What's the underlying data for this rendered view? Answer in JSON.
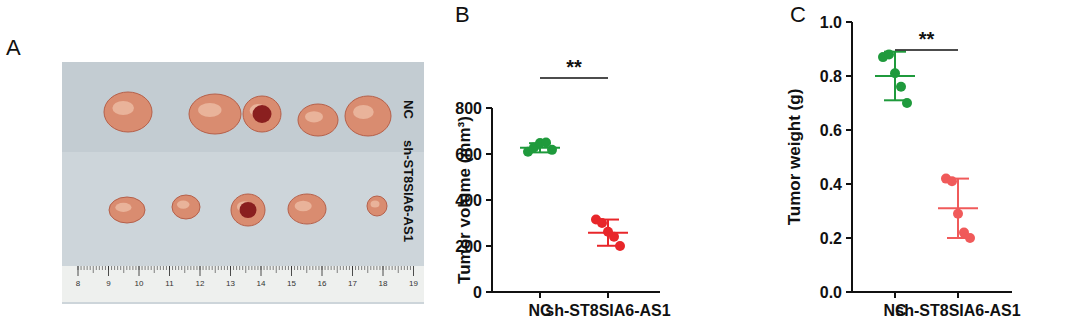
{
  "panel_labels": [
    "A",
    "B",
    "C"
  ],
  "photo": {
    "row_labels": [
      "NC",
      "sh-ST8SIA6-AS1"
    ],
    "ruler_ticks": [
      8,
      9,
      10,
      11,
      12,
      13,
      14,
      15,
      16,
      17,
      18,
      19
    ]
  },
  "chart_data": [
    {
      "type": "dot",
      "y_label": "Tumor volume (mm³)",
      "categories": [
        "NC",
        "sh-ST8SIA6-AS1"
      ],
      "values": [
        [
          610,
          628,
          648,
          650,
          618
        ],
        [
          315,
          300,
          262,
          240,
          200
        ]
      ],
      "means": [
        627,
        258
      ],
      "errors": [
        20,
        57
      ],
      "colors": [
        "#1f9a3c",
        "#e8262a"
      ],
      "ylim": [
        0,
        800
      ],
      "yticks": [
        0,
        200,
        400,
        600,
        800
      ],
      "annotation": "**"
    },
    {
      "type": "dot",
      "y_label": "Tumor weight (g)",
      "categories": [
        "NC",
        "sh-ST8SIA6-AS1"
      ],
      "values": [
        [
          0.87,
          0.88,
          0.81,
          0.76,
          0.7
        ],
        [
          0.42,
          0.41,
          0.29,
          0.22,
          0.2
        ]
      ],
      "means": [
        0.8,
        0.31
      ],
      "errors": [
        0.09,
        0.11
      ],
      "colors": [
        "#1f9a3c",
        "#f05a5a"
      ],
      "ylim": [
        0,
        1.0
      ],
      "yticks": [
        {
          "value": 0,
          "label": "0.0"
        },
        0.2,
        0.4,
        0.6,
        0.8,
        {
          "value": 1.0,
          "label": "1.0"
        }
      ],
      "annotation": "**"
    }
  ]
}
